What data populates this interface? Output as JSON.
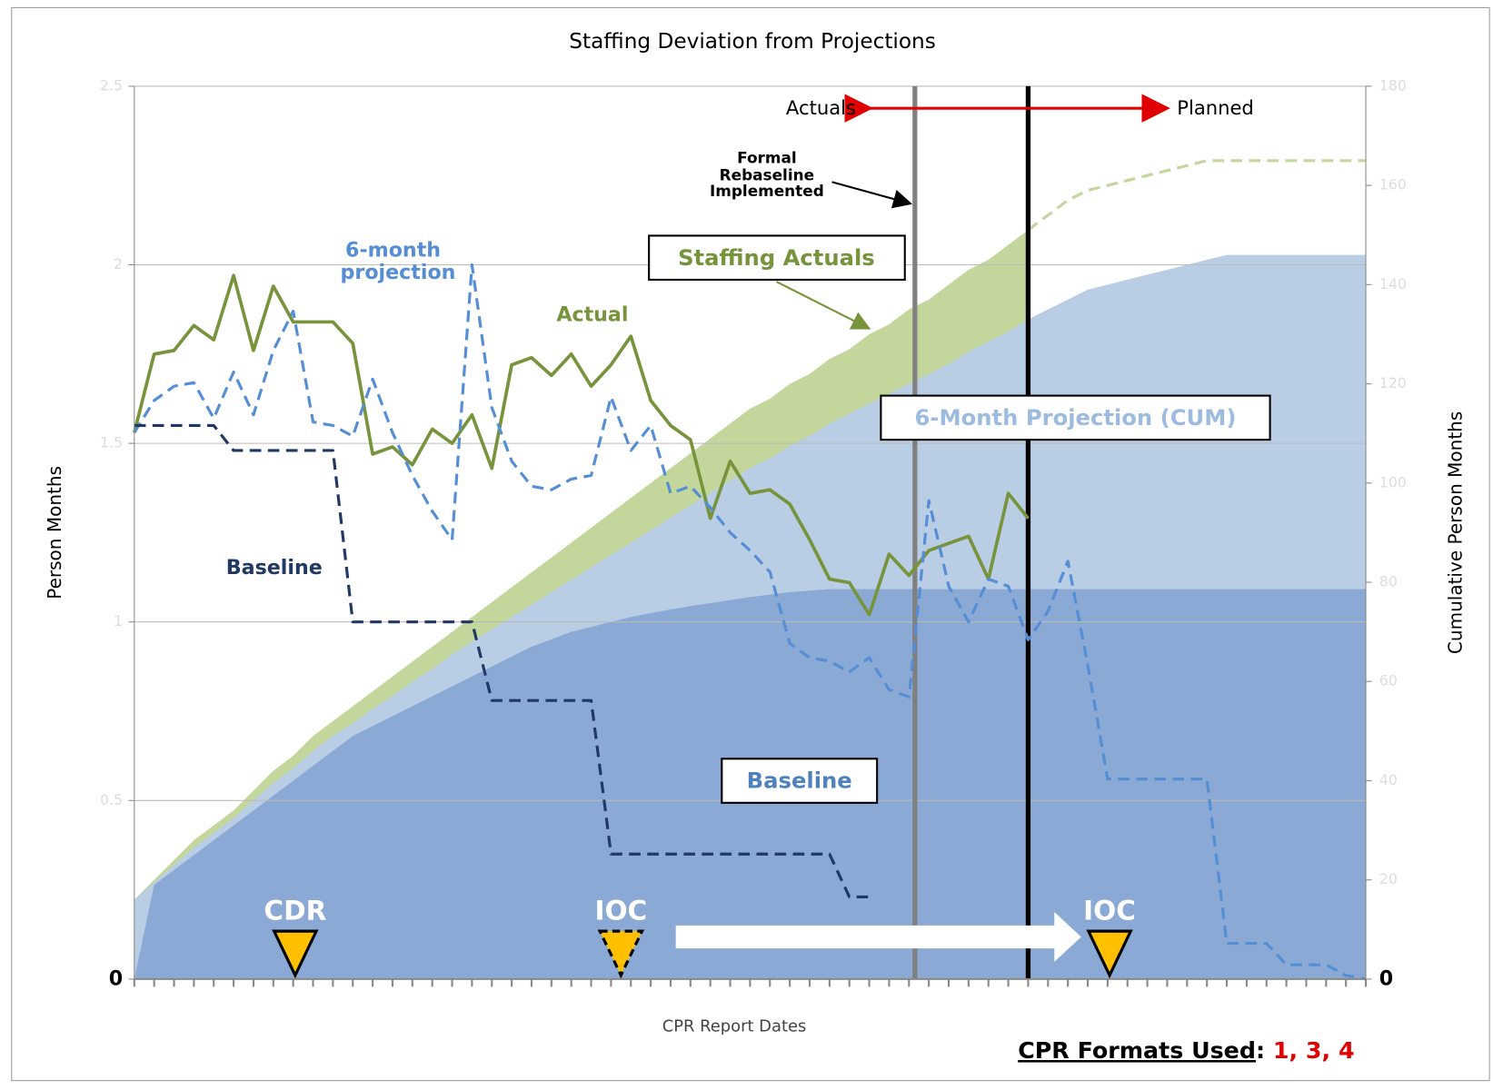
{
  "chart_data": {
    "type": "combo",
    "title": "Staffing Deviation from Projections",
    "y_label": "Person Months",
    "y2_label": "Cumulative Person Months",
    "x_label": "CPR Report Dates",
    "xlim": [
      0,
      62
    ],
    "ylim": [
      0,
      2.5
    ],
    "y2lim": [
      0,
      180
    ],
    "yticks": [
      0,
      0.5,
      1,
      1.5,
      2,
      2.5
    ],
    "y2ticks": [
      0,
      20,
      40,
      60,
      80,
      100,
      120,
      140,
      160,
      180
    ],
    "xticks": [
      0,
      1,
      2,
      3,
      4,
      5,
      6,
      7,
      8,
      9,
      10,
      11,
      12,
      13,
      14,
      15,
      16,
      17,
      18,
      19,
      20,
      21,
      22,
      23,
      24,
      25,
      26,
      27,
      28,
      29,
      30,
      31,
      32,
      33,
      34,
      35,
      36,
      37,
      38,
      39,
      40,
      41,
      42,
      43,
      44,
      45,
      46,
      47,
      48,
      49,
      50,
      51,
      52,
      53,
      54,
      55,
      56,
      57,
      58,
      59,
      60,
      61,
      62
    ],
    "grid": true,
    "x": [
      0,
      1,
      2,
      3,
      4,
      5,
      6,
      7,
      8,
      9,
      10,
      11,
      12,
      13,
      14,
      15,
      16,
      17,
      18,
      19,
      20,
      21,
      22,
      23,
      24,
      25,
      26,
      27,
      28,
      29,
      30,
      31,
      32,
      33,
      34,
      35,
      36,
      37,
      38,
      39,
      40,
      41,
      42,
      43,
      44,
      45,
      46,
      47,
      48,
      49,
      50,
      51,
      52,
      53,
      54,
      55,
      56,
      57,
      58,
      59,
      60,
      61,
      62
    ],
    "series": [
      {
        "name": "Actual",
        "style": "line",
        "color": "#77933c",
        "dash": false,
        "values": [
          1.53,
          1.75,
          1.76,
          1.83,
          1.79,
          1.97,
          1.76,
          1.94,
          1.84,
          1.84,
          1.84,
          1.78,
          1.47,
          1.49,
          1.44,
          1.54,
          1.5,
          1.58,
          1.43,
          1.72,
          1.74,
          1.69,
          1.75,
          1.66,
          1.72,
          1.8,
          1.62,
          1.55,
          1.51,
          1.29,
          1.45,
          1.36,
          1.37,
          1.33,
          1.23,
          1.12,
          1.11,
          1.02,
          1.19,
          1.13,
          1.2,
          1.22,
          1.24,
          1.12,
          1.36,
          1.29,
          null,
          null,
          null,
          null,
          null,
          null,
          null,
          null,
          null,
          null,
          null,
          null,
          null,
          null,
          null,
          null,
          null
        ]
      },
      {
        "name": "6-month projection",
        "style": "line",
        "color": "#558ed5",
        "dash": true,
        "values": [
          1.53,
          1.62,
          1.66,
          1.67,
          1.57,
          1.7,
          1.58,
          1.76,
          1.87,
          1.56,
          1.55,
          1.52,
          1.68,
          1.53,
          1.41,
          1.31,
          1.23,
          2.0,
          1.6,
          1.45,
          1.38,
          1.37,
          1.4,
          1.41,
          1.63,
          1.48,
          1.55,
          1.36,
          1.38,
          1.32,
          1.25,
          1.2,
          1.14,
          0.94,
          0.9,
          0.89,
          0.86,
          0.9,
          0.81,
          0.79,
          1.34,
          1.1,
          1.0,
          1.12,
          1.1,
          0.95,
          1.03,
          1.17,
          0.88,
          0.56,
          0.56,
          0.56,
          0.56,
          0.56,
          0.56,
          0.1,
          0.1,
          0.1,
          0.04,
          0.04,
          0.04,
          0.01,
          0
        ]
      },
      {
        "name": "Baseline",
        "style": "line",
        "color": "#1f3864",
        "dash": true,
        "values": [
          1.55,
          1.55,
          1.55,
          1.55,
          1.55,
          1.48,
          1.48,
          1.48,
          1.48,
          1.48,
          1.48,
          1.0,
          1.0,
          1.0,
          1.0,
          1.0,
          1.0,
          1.0,
          0.78,
          0.78,
          0.78,
          0.78,
          0.78,
          0.78,
          0.35,
          0.35,
          0.35,
          0.35,
          0.35,
          0.35,
          0.35,
          0.35,
          0.35,
          0.35,
          0.35,
          0.35,
          0.23,
          0.23,
          null,
          null,
          null,
          null,
          null,
          null,
          null,
          null,
          null,
          null,
          null,
          null,
          null,
          null,
          null,
          null,
          null,
          null,
          null,
          null,
          null,
          null,
          null,
          null,
          null
        ]
      },
      {
        "name": "Staffing Actuals",
        "style": "area",
        "axis": "y2",
        "color": "#c3d69b",
        "values": [
          16,
          20,
          24,
          28,
          31,
          34,
          38,
          42,
          45,
          49,
          52,
          55,
          58,
          61,
          64,
          67,
          70,
          73,
          76,
          79,
          82,
          85,
          88,
          91,
          94,
          97,
          100,
          103,
          106,
          109,
          112,
          115,
          117,
          120,
          122,
          125,
          127,
          130,
          132,
          135,
          137,
          140,
          143,
          145,
          148,
          151,
          null,
          null,
          null,
          null,
          null,
          null,
          null,
          null,
          null,
          null,
          null,
          null,
          null,
          null,
          null,
          null,
          null
        ]
      },
      {
        "name": "6-Month Projection (CUM)",
        "style": "area",
        "axis": "y2",
        "color": "#b9cde5",
        "values": [
          16,
          19.5,
          23,
          26.5,
          29.5,
          32.5,
          36,
          39.5,
          42.5,
          46,
          49,
          51.5,
          54.5,
          57,
          60,
          62.5,
          65.5,
          68,
          70.5,
          73,
          75.5,
          78,
          80.5,
          83,
          85.5,
          88,
          90.5,
          93,
          95.5,
          98,
          100.5,
          103,
          105,
          107.5,
          109.5,
          112,
          114,
          116,
          118,
          120,
          122,
          124,
          126.5,
          128.5,
          130.5,
          133,
          135,
          137,
          139,
          140,
          141,
          142,
          143,
          144,
          145,
          146,
          146,
          146,
          146,
          146,
          146,
          146,
          146
        ]
      },
      {
        "name": "Baseline",
        "style": "area",
        "axis": "y2",
        "color": "#8aaad5",
        "values": [
          0,
          19,
          22,
          25,
          28,
          31,
          34,
          37,
          40,
          43,
          46,
          49,
          51,
          53,
          55,
          57,
          59,
          61,
          63,
          65,
          67,
          68.5,
          70,
          71,
          72,
          73,
          73.8,
          74.5,
          75.2,
          75.8,
          76.4,
          77,
          77.5,
          78,
          78.3,
          78.6,
          78.6,
          78.6,
          78.6,
          78.6,
          78.6,
          78.6,
          78.6,
          78.6,
          78.6,
          78.6,
          78.6,
          78.6,
          78.6,
          78.6,
          78.6,
          78.6,
          78.6,
          78.6,
          78.6,
          78.6,
          78.6,
          78.6,
          78.6,
          78.6,
          78.6,
          78.6,
          78.6
        ]
      },
      {
        "style": "line",
        "axis": "y2",
        "color": "#c3d69b",
        "dash": true,
        "values": [
          null,
          null,
          null,
          null,
          null,
          null,
          null,
          null,
          null,
          null,
          null,
          null,
          null,
          null,
          null,
          null,
          null,
          null,
          null,
          null,
          null,
          null,
          null,
          null,
          null,
          null,
          null,
          null,
          null,
          null,
          null,
          null,
          null,
          null,
          null,
          null,
          null,
          null,
          null,
          null,
          null,
          null,
          null,
          null,
          null,
          151,
          154,
          157,
          159,
          160,
          161,
          162,
          163,
          164,
          165,
          165,
          165,
          165,
          165,
          165,
          165,
          165,
          165
        ]
      }
    ],
    "vlines": [
      {
        "x": 39.3,
        "color": "#808080"
      },
      {
        "x": 45,
        "color": "#000000"
      }
    ],
    "milestones": [
      {
        "label": "CDR",
        "x": 8.1
      },
      {
        "label": "IOC",
        "x": 24.5
      },
      {
        "label": "IOC",
        "x": 49.1
      }
    ],
    "annotations": {
      "actuals": "Actuals",
      "planned": "Planned",
      "rebaseline": "Formal Rebaseline Implemented"
    },
    "footer": {
      "label": "CPR Formats Used",
      "sep": ":",
      "formats": "1, 3, 4"
    }
  }
}
